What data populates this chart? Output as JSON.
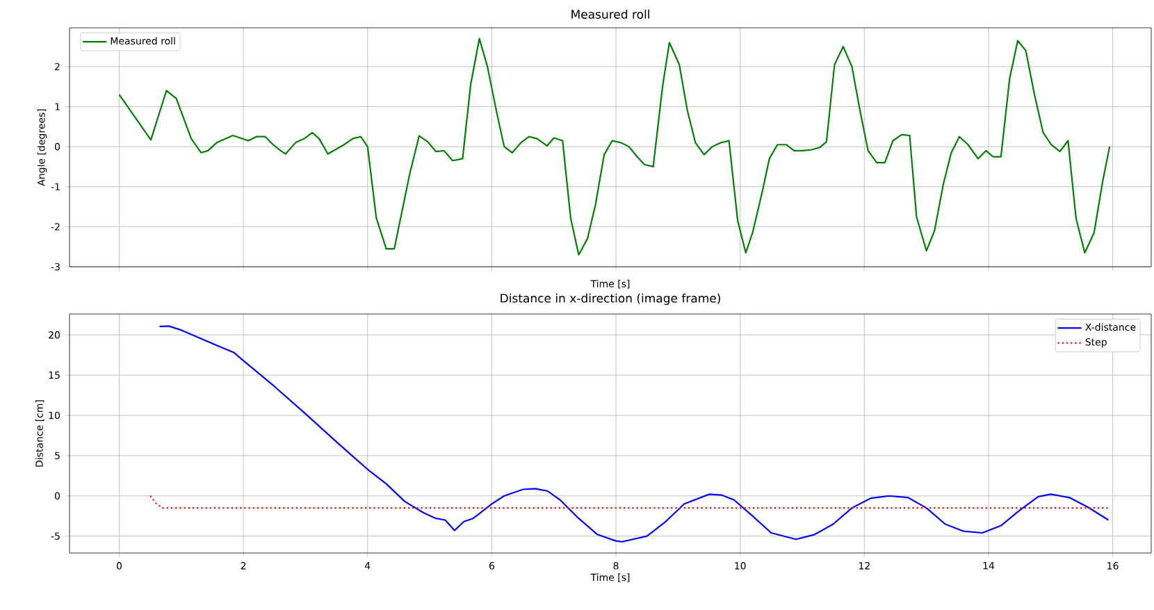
{
  "chart_data": [
    {
      "type": "line",
      "title": "Measured roll",
      "xlabel": "Time [s]",
      "ylabel": "Angle [degrees]",
      "xlim": [
        -0.8,
        16.62
      ],
      "ylim": [
        -3,
        2.97
      ],
      "xticks": [
        0,
        2,
        4,
        6,
        8,
        10,
        12,
        14,
        16
      ],
      "yticks": [
        -3,
        -2,
        -1,
        0,
        1,
        2
      ],
      "tick_labels": "y",
      "grid": true,
      "legend": "top left",
      "series": [
        {
          "name": "Measured roll",
          "color": "#008000",
          "x": [
            0,
            0.51,
            0.76,
            0.92,
            1.16,
            1.32,
            1.43,
            1.57,
            1.83,
            2.08,
            2.21,
            2.35,
            2.48,
            2.6,
            2.68,
            2.84,
            2.98,
            3.11,
            3.22,
            3.36,
            3.51,
            3.62,
            3.76,
            3.89,
            4.0,
            4.14,
            4.3,
            4.43,
            4.68,
            4.83,
            4.97,
            5.1,
            5.23,
            5.37,
            5.53,
            5.66,
            5.8,
            5.93,
            6.08,
            6.2,
            6.33,
            6.47,
            6.6,
            6.73,
            6.89,
            7.0,
            7.14,
            7.27,
            7.4,
            7.54,
            7.67,
            7.81,
            7.94,
            8.08,
            8.21,
            8.34,
            8.46,
            8.6,
            8.75,
            8.86,
            9.02,
            9.15,
            9.28,
            9.42,
            9.55,
            9.69,
            9.82,
            9.96,
            10.09,
            10.2,
            10.36,
            10.47,
            10.6,
            10.74,
            10.87,
            11.0,
            11.14,
            11.28,
            11.39,
            11.52,
            11.66,
            11.8,
            11.93,
            12.06,
            12.2,
            12.33,
            12.46,
            12.6,
            12.73,
            12.84,
            13.0,
            13.13,
            13.27,
            13.4,
            13.53,
            13.67,
            13.83,
            13.96,
            14.07,
            14.2,
            14.34,
            14.47,
            14.6,
            14.74,
            14.88,
            15.01,
            15.15,
            15.28,
            15.41,
            15.55,
            15.7,
            15.84,
            15.95
          ],
          "values": [
            1.3,
            0.17,
            1.4,
            1.2,
            0.2,
            -0.15,
            -0.1,
            0.1,
            0.28,
            0.15,
            0.25,
            0.25,
            0.05,
            -0.1,
            -0.18,
            0.1,
            0.2,
            0.35,
            0.2,
            -0.18,
            -0.05,
            0.05,
            0.2,
            0.25,
            0,
            -1.78,
            -2.55,
            -2.55,
            -0.67,
            0.27,
            0.12,
            -0.12,
            -0.1,
            -0.35,
            -0.3,
            1.55,
            2.7,
            2.0,
            0.85,
            0,
            -0.15,
            0.1,
            0.25,
            0.2,
            0.02,
            0.22,
            0.15,
            -1.78,
            -2.7,
            -2.3,
            -1.45,
            -0.2,
            0.15,
            0.1,
            0,
            -0.25,
            -0.45,
            -0.5,
            1.5,
            2.6,
            2.05,
            0.9,
            0.1,
            -0.2,
            0,
            0.1,
            0.15,
            -1.85,
            -2.65,
            -2.15,
            -1.1,
            -0.3,
            0.05,
            0.05,
            -0.1,
            -0.1,
            -0.08,
            -0.02,
            0.12,
            2.05,
            2.5,
            2.0,
            0.9,
            -0.1,
            -0.4,
            -0.4,
            0.15,
            0.3,
            0.28,
            -1.75,
            -2.6,
            -2.1,
            -0.95,
            -0.15,
            0.25,
            0.05,
            -0.3,
            -0.1,
            -0.25,
            -0.25,
            1.7,
            2.65,
            2.4,
            1.3,
            0.35,
            0.05,
            -0.12,
            0.15,
            -1.8,
            -2.65,
            -2.15,
            -0.85,
            0
          ]
        }
      ]
    },
    {
      "type": "line",
      "title": "Distance in x-direction (image frame)",
      "xlabel": "Time [s]",
      "ylabel": "Distance [cm]",
      "xlim": [
        -0.8,
        16.62
      ],
      "ylim": [
        -7.1,
        22.6
      ],
      "xticks": [
        0,
        2,
        4,
        6,
        8,
        10,
        12,
        14,
        16
      ],
      "yticks": [
        -5,
        0,
        5,
        10,
        15,
        20
      ],
      "grid": true,
      "legend": "top right",
      "series": [
        {
          "name": "X-distance",
          "color": "#0000ff",
          "x": [
            0.65,
            0.8,
            1.0,
            1.3,
            1.6,
            1.85,
            2.0,
            2.5,
            3.0,
            3.5,
            4.0,
            4.3,
            4.6,
            4.9,
            5.1,
            5.25,
            5.4,
            5.55,
            5.7,
            6.0,
            6.2,
            6.5,
            6.7,
            6.9,
            7.1,
            7.4,
            7.7,
            8.0,
            8.1,
            8.5,
            8.8,
            9.1,
            9.5,
            9.7,
            9.9,
            10.2,
            10.5,
            10.9,
            11.2,
            11.5,
            11.8,
            12.1,
            12.4,
            12.7,
            13.0,
            13.3,
            13.6,
            13.9,
            14.2,
            14.5,
            14.8,
            15.0,
            15.3,
            15.6,
            15.93
          ],
          "values": [
            21.05,
            21.1,
            20.6,
            19.6,
            18.6,
            17.8,
            16.8,
            13.6,
            10.2,
            6.7,
            3.3,
            1.5,
            -0.7,
            -2.1,
            -2.8,
            -3.0,
            -4.3,
            -3.2,
            -2.8,
            -1.0,
            0.0,
            0.8,
            0.9,
            0.6,
            -0.5,
            -2.8,
            -4.8,
            -5.6,
            -5.7,
            -5.0,
            -3.2,
            -1.0,
            0.2,
            0.1,
            -0.5,
            -2.5,
            -4.6,
            -5.4,
            -4.8,
            -3.5,
            -1.5,
            -0.3,
            0.0,
            -0.2,
            -1.5,
            -3.5,
            -4.4,
            -4.6,
            -3.7,
            -1.8,
            -0.1,
            0.2,
            -0.2,
            -1.4,
            -3.0
          ]
        },
        {
          "name": "Step",
          "color": "#ff0000",
          "line_style": "dotted",
          "x": [
            0.5,
            0.6,
            0.7,
            15.93
          ],
          "values": [
            0,
            -1.0,
            -1.5,
            -1.5
          ]
        }
      ]
    }
  ]
}
